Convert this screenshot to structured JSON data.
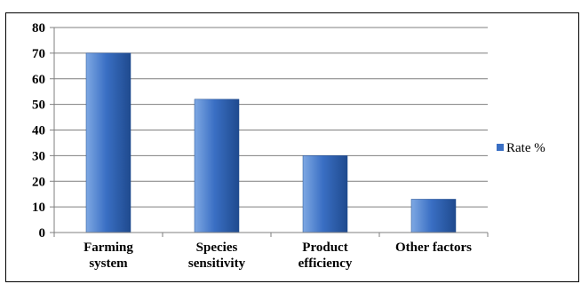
{
  "chart_data": {
    "type": "bar",
    "categories": [
      [
        "Farming",
        "system"
      ],
      [
        "Species",
        "sensitivity"
      ],
      [
        "Product",
        "efficiency"
      ],
      [
        "Other factors"
      ]
    ],
    "series": [
      {
        "name": "Rate %",
        "values": [
          70,
          52,
          30,
          13
        ]
      }
    ],
    "ylim": [
      0,
      80
    ],
    "yticks": [
      0,
      10,
      20,
      30,
      40,
      50,
      60,
      70,
      80
    ],
    "grid": true,
    "legend": "right",
    "colors": {
      "bar_light": "#7ea8e3",
      "bar_mid": "#3a6fc4",
      "bar_dark": "#1f4a8e",
      "grid": "#7f7f7f",
      "axis": "#7f7f7f"
    }
  }
}
